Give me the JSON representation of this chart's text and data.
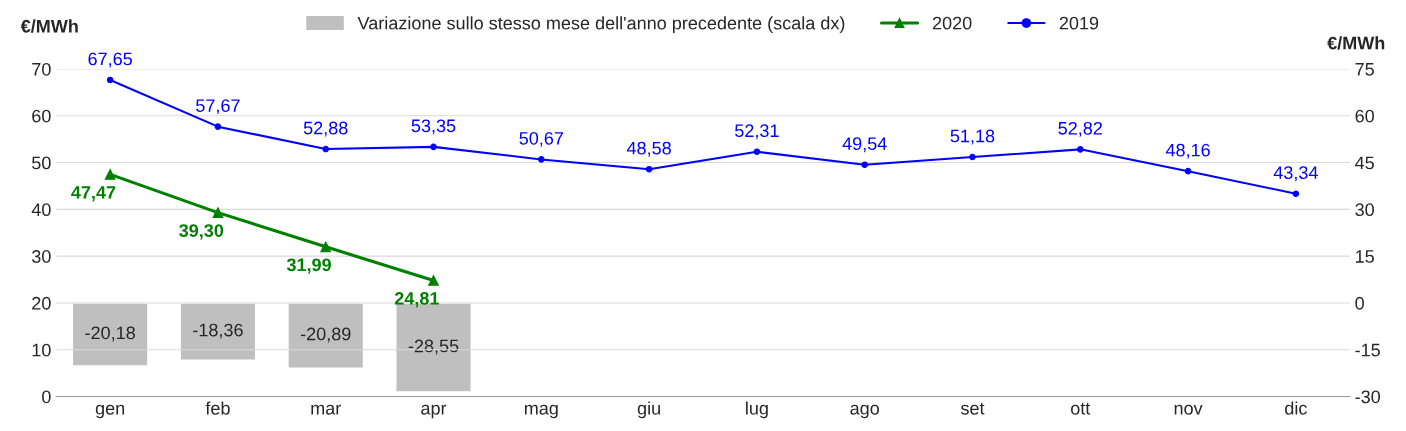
{
  "chart_data": {
    "type": "line",
    "categories": [
      "gen",
      "feb",
      "mar",
      "apr",
      "mag",
      "giu",
      "lug",
      "ago",
      "set",
      "ott",
      "nov",
      "dic"
    ],
    "ylabel": "€/MWh",
    "y2label": "€/MWh",
    "ylim": [
      0,
      70
    ],
    "yticks": [
      0,
      10,
      20,
      30,
      40,
      50,
      60,
      70
    ],
    "y2lim": [
      -30,
      75
    ],
    "y2ticks": [
      -30,
      -15,
      0,
      15,
      30,
      45,
      60,
      75
    ],
    "grid": "y",
    "legend": "top",
    "series": [
      {
        "name": "Variazione sullo stesso mese dell'anno precedente (scala dx)",
        "type": "bar",
        "axis": "y2",
        "color": "#bfbfbf",
        "values": [
          -20.18,
          -18.36,
          -20.89,
          -28.55,
          null,
          null,
          null,
          null,
          null,
          null,
          null,
          null
        ],
        "value_labels": [
          "-20,18",
          "-18,36",
          "-20,89",
          "-28,55",
          null,
          null,
          null,
          null,
          null,
          null,
          null,
          null
        ]
      },
      {
        "name": "2020",
        "color": "#008000",
        "marker": "triangle",
        "values": [
          47.47,
          39.3,
          31.99,
          24.81,
          null,
          null,
          null,
          null,
          null,
          null,
          null,
          null
        ],
        "value_labels": [
          "47,47",
          "39,30",
          "31,99",
          "24,81",
          null,
          null,
          null,
          null,
          null,
          null,
          null,
          null
        ]
      },
      {
        "name": "2019",
        "color": "#0000ff",
        "marker": "circle",
        "values": [
          67.65,
          57.67,
          52.88,
          53.35,
          50.67,
          48.58,
          52.31,
          49.54,
          51.18,
          52.82,
          48.16,
          43.34
        ],
        "value_labels": [
          "67,65",
          "57,67",
          "52,88",
          "53,35",
          "50,67",
          "48,58",
          "52,31",
          "49,54",
          "51,18",
          "52,82",
          "48,16",
          "43,34"
        ]
      }
    ]
  }
}
